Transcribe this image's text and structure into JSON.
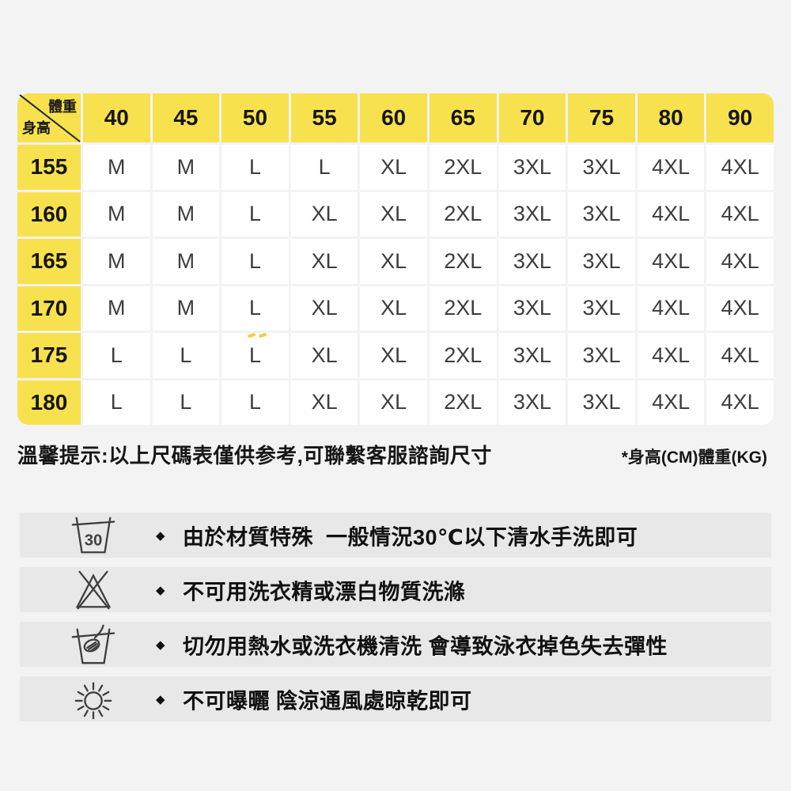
{
  "colors": {
    "page_bg": "#F3F3F4",
    "yellow": "#F8E14E",
    "cell_bg": "#FFFFFF",
    "stripe_bg": "#E8E8E8",
    "text_dark": "#161616",
    "size_text": "#3D3D3D",
    "icon_stroke": "#3F3F3F"
  },
  "size_chart": {
    "corner": {
      "top_right_label": "體重",
      "bottom_left_label": "身高"
    },
    "weights": [
      "40",
      "45",
      "50",
      "55",
      "60",
      "65",
      "70",
      "75",
      "80",
      "90"
    ],
    "rows": [
      {
        "height": "155",
        "sizes": [
          "M",
          "M",
          "L",
          "L",
          "XL",
          "2XL",
          "3XL",
          "3XL",
          "4XL",
          "4XL"
        ]
      },
      {
        "height": "160",
        "sizes": [
          "M",
          "M",
          "L",
          "XL",
          "XL",
          "2XL",
          "3XL",
          "3XL",
          "4XL",
          "4XL"
        ]
      },
      {
        "height": "165",
        "sizes": [
          "M",
          "M",
          "L",
          "XL",
          "XL",
          "2XL",
          "3XL",
          "3XL",
          "4XL",
          "4XL"
        ]
      },
      {
        "height": "170",
        "sizes": [
          "M",
          "M",
          "L",
          "XL",
          "XL",
          "2XL",
          "3XL",
          "3XL",
          "4XL",
          "4XL"
        ]
      },
      {
        "height": "175",
        "sizes": [
          "L",
          "L",
          "L",
          "XL",
          "XL",
          "2XL",
          "3XL",
          "3XL",
          "4XL",
          "4XL"
        ]
      },
      {
        "height": "180",
        "sizes": [
          "L",
          "L",
          "L",
          "XL",
          "XL",
          "2XL",
          "3XL",
          "3XL",
          "4XL",
          "4XL"
        ]
      }
    ]
  },
  "notes": {
    "tip": "溫馨提示:以上尺碼表僅供参考,可聯繫客服諮詢尺寸",
    "units": "*身高(CM)體重(KG)"
  },
  "care": {
    "bullet": "◆",
    "items": [
      {
        "icon": "wash-30-basin-icon",
        "icon_label": "30",
        "text": "由於材質特殊  一般情況30℃以下清水手洗即可"
      },
      {
        "icon": "no-bleach-icon",
        "text": "不可用洗衣精或漂白物質洗滌"
      },
      {
        "icon": "hand-wash-only-icon",
        "text": "切勿用熱水或洗衣機清洗 會導致泳衣掉色失去彈性"
      },
      {
        "icon": "sun-dry-icon",
        "text": "不可曝曬 陰涼通風處晾乾即可"
      }
    ]
  }
}
